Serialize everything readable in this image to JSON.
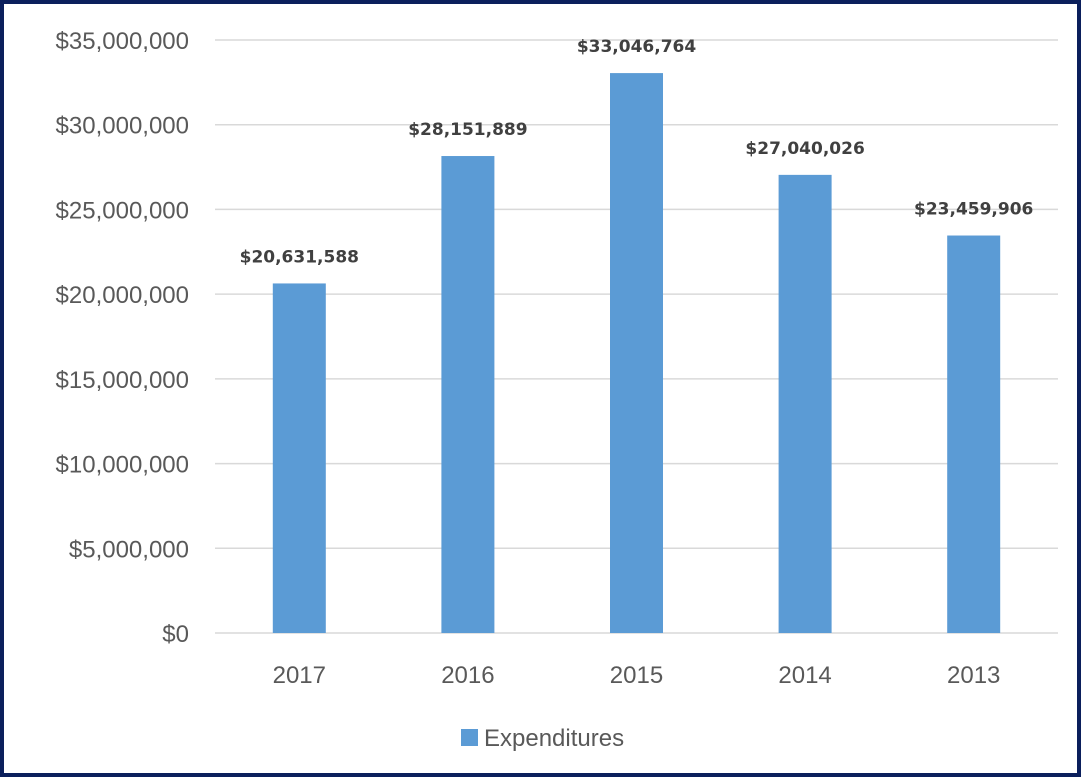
{
  "chart_data": {
    "type": "bar",
    "title": "",
    "xlabel": "",
    "ylabel": "",
    "categories": [
      "2017",
      "2016",
      "2015",
      "2014",
      "2013"
    ],
    "series": [
      {
        "name": "Expenditures",
        "color": "#5b9bd5",
        "values": [
          20631588,
          28151889,
          33046764,
          27040026,
          23459906
        ],
        "data_labels": [
          "$20,631,588",
          "$28,151,889",
          "$33,046,764",
          "$27,040,026",
          "$23,459,906"
        ]
      }
    ],
    "ylim": [
      0,
      35000000
    ],
    "y_ticks": [
      0,
      5000000,
      10000000,
      15000000,
      20000000,
      25000000,
      30000000,
      35000000
    ],
    "y_tick_labels": [
      "$0",
      "$5,000,000",
      "$10,000,000",
      "$15,000,000",
      "$20,000,000",
      "$25,000,000",
      "$30,000,000",
      "$35,000,000"
    ],
    "grid": true,
    "legend_position": "bottom",
    "border_color": "#0b1f5c",
    "gridline_color": "#d9d9d9"
  }
}
